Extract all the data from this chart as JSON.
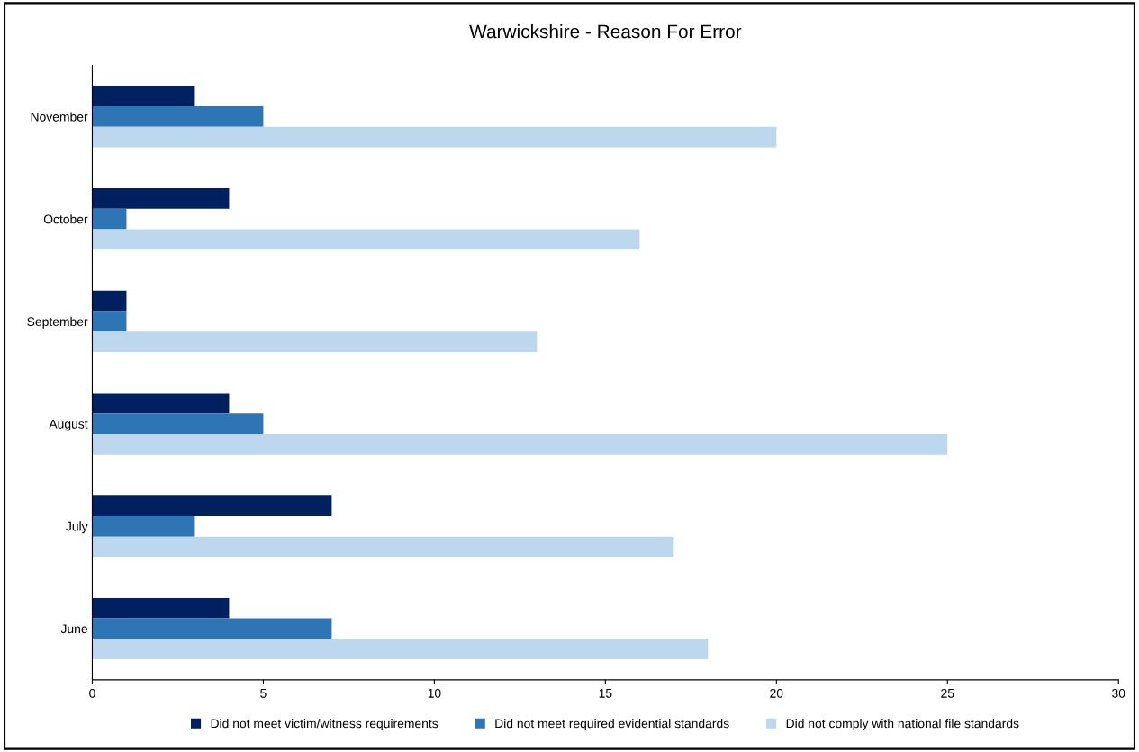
{
  "chart_data": {
    "type": "bar",
    "orientation": "horizontal",
    "title": "Warwickshire - Reason For Error",
    "categories": [
      "November",
      "October",
      "September",
      "August",
      "July",
      "June"
    ],
    "series": [
      {
        "name": "Did not meet victim/witness requirements",
        "color": "#002060",
        "values": [
          3,
          4,
          1,
          4,
          7,
          4
        ]
      },
      {
        "name": "Did not meet required evidential standards",
        "color": "#2e75b6",
        "values": [
          5,
          1,
          1,
          5,
          3,
          7
        ]
      },
      {
        "name": "Did not comply with national file standards",
        "color": "#bdd7ee",
        "values": [
          20,
          16,
          13,
          25,
          17,
          18
        ]
      }
    ],
    "xlim": [
      0,
      30
    ],
    "xticks": [
      0,
      5,
      10,
      15,
      20,
      25,
      30
    ],
    "grid": false,
    "legend": "bottom"
  }
}
